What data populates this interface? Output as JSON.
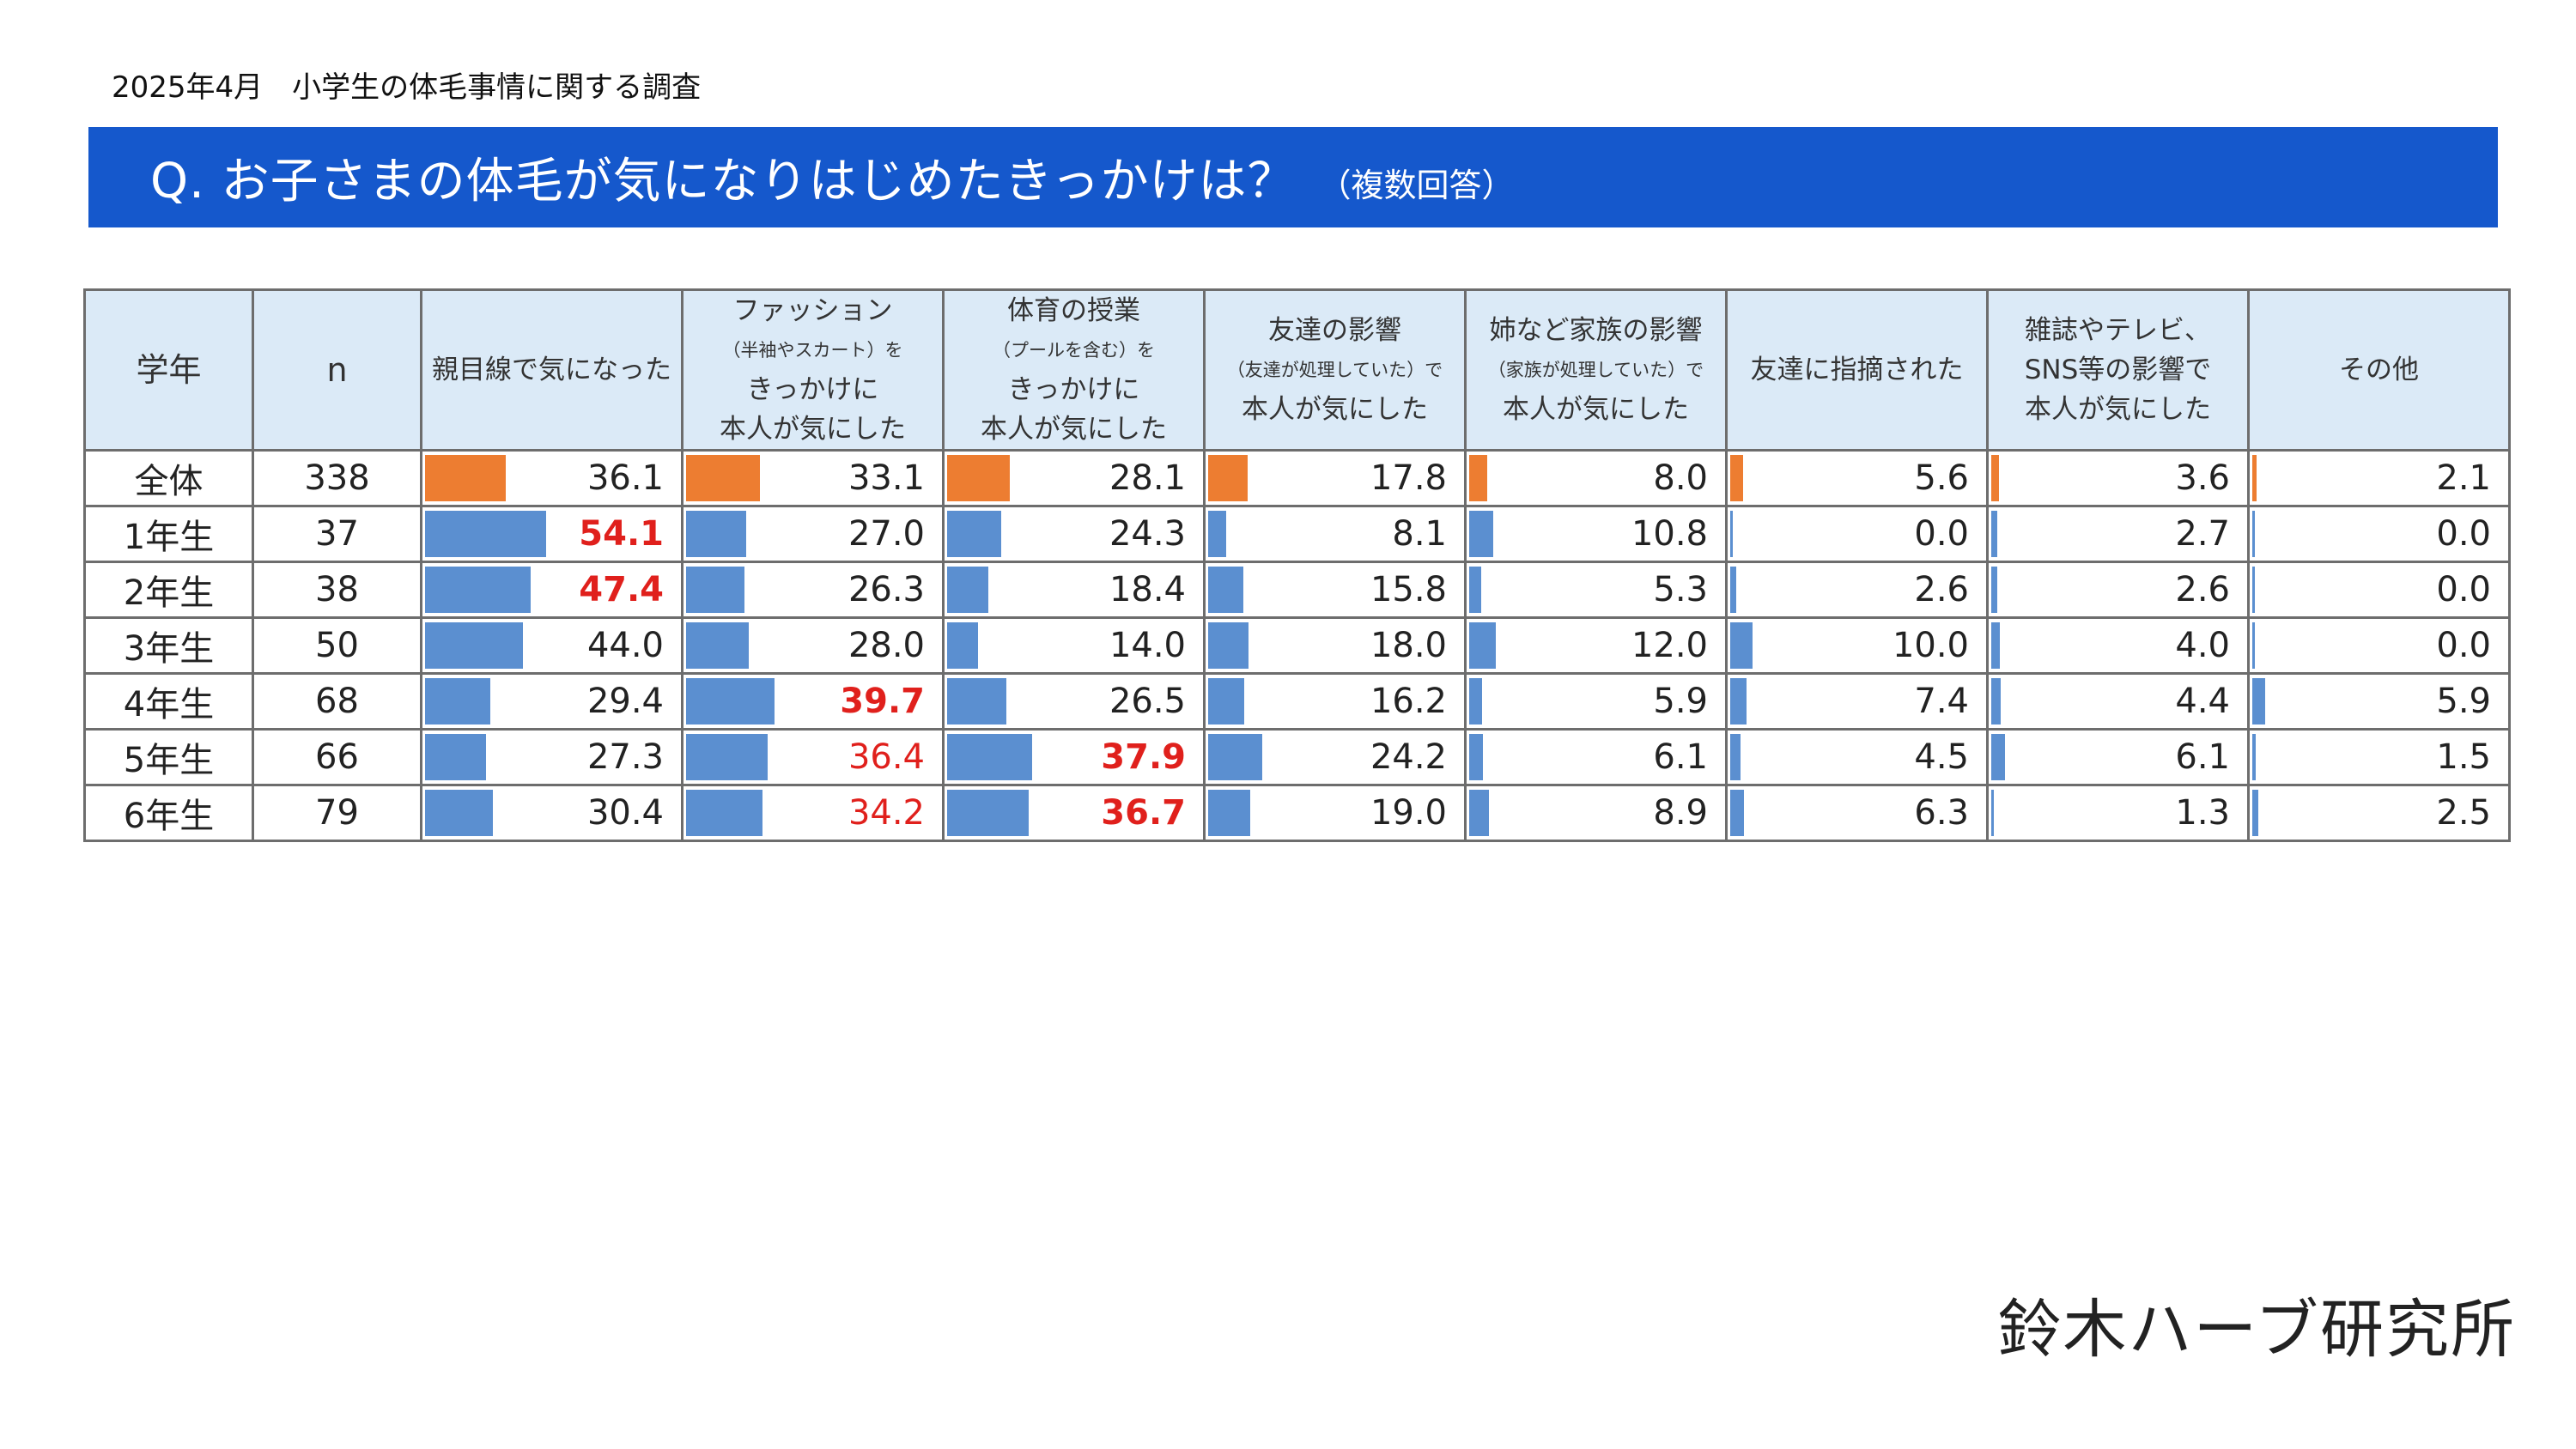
{
  "header": {
    "survey": "2025年4月　小学生の体毛事情に関する調査",
    "question": "Q. お子さまの体毛が気になりはじめたきっかけは？",
    "question_note": "（複数回答）"
  },
  "logo": "鈴木ハーブ研究所",
  "colors": {
    "title_bar": "#1558cc",
    "header_bg": "#dbeaf7",
    "bar_total": "#ed7d31",
    "bar_grade": "#5b8fd0",
    "highlight": "#e0201c"
  },
  "chart_data": {
    "type": "table",
    "columns": [
      {
        "lines": [
          {
            "t": "学年"
          }
        ]
      },
      {
        "lines": [
          {
            "t": "n"
          }
        ]
      },
      {
        "lines": [
          {
            "t": "親目線で気になった"
          }
        ]
      },
      {
        "lines": [
          {
            "t": "ファッション"
          },
          {
            "t": "（半袖やスカート）を",
            "s": 1
          },
          {
            "t": "きっかけに"
          },
          {
            "t": "本人が気にした"
          }
        ]
      },
      {
        "lines": [
          {
            "t": "体育の授業"
          },
          {
            "t": "（プールを含む）を",
            "s": 1
          },
          {
            "t": "きっかけに"
          },
          {
            "t": "本人が気にした"
          }
        ]
      },
      {
        "lines": [
          {
            "t": "友達の影響"
          },
          {
            "t": "（友達が処理していた）で",
            "s": 1
          },
          {
            "t": "本人が気にした"
          }
        ]
      },
      {
        "lines": [
          {
            "t": "姉など家族の影響"
          },
          {
            "t": "（家族が処理していた）で",
            "s": 1
          },
          {
            "t": "本人が気にした"
          }
        ]
      },
      {
        "lines": [
          {
            "t": "友達に指摘された"
          }
        ]
      },
      {
        "lines": [
          {
            "t": "雑誌やテレビ、"
          },
          {
            "t": "SNS等の影響で"
          },
          {
            "t": "本人が気にした"
          }
        ]
      },
      {
        "lines": [
          {
            "t": "その他"
          }
        ]
      }
    ],
    "rows": [
      {
        "grade": "全体",
        "n": "338",
        "total": true,
        "values": [
          "36.1",
          "33.1",
          "28.1",
          "17.8",
          "8.0",
          "5.6",
          "3.6",
          "2.1"
        ],
        "hl": [],
        "bold": []
      },
      {
        "grade": "1年生",
        "n": "37",
        "total": false,
        "values": [
          "54.1",
          "27.0",
          "24.3",
          "8.1",
          "10.8",
          "0.0",
          "2.7",
          "0.0"
        ],
        "hl": [
          0
        ],
        "bold": [
          0
        ]
      },
      {
        "grade": "2年生",
        "n": "38",
        "total": false,
        "values": [
          "47.4",
          "26.3",
          "18.4",
          "15.8",
          "5.3",
          "2.6",
          "2.6",
          "0.0"
        ],
        "hl": [
          0
        ],
        "bold": [
          0
        ]
      },
      {
        "grade": "3年生",
        "n": "50",
        "total": false,
        "values": [
          "44.0",
          "28.0",
          "14.0",
          "18.0",
          "12.0",
          "10.0",
          "4.0",
          "0.0"
        ],
        "hl": [],
        "bold": []
      },
      {
        "grade": "4年生",
        "n": "68",
        "total": false,
        "values": [
          "29.4",
          "39.7",
          "26.5",
          "16.2",
          "5.9",
          "7.4",
          "4.4",
          "5.9"
        ],
        "hl": [
          1
        ],
        "bold": [
          1
        ]
      },
      {
        "grade": "5年生",
        "n": "66",
        "total": false,
        "values": [
          "27.3",
          "36.4",
          "37.9",
          "24.2",
          "6.1",
          "4.5",
          "6.1",
          "1.5"
        ],
        "hl": [
          1,
          2
        ],
        "bold": [
          2
        ]
      },
      {
        "grade": "6年生",
        "n": "79",
        "total": false,
        "values": [
          "30.4",
          "34.2",
          "36.7",
          "19.0",
          "8.9",
          "6.3",
          "1.3",
          "2.5"
        ],
        "hl": [
          1,
          2
        ],
        "bold": [
          2
        ]
      }
    ]
  }
}
